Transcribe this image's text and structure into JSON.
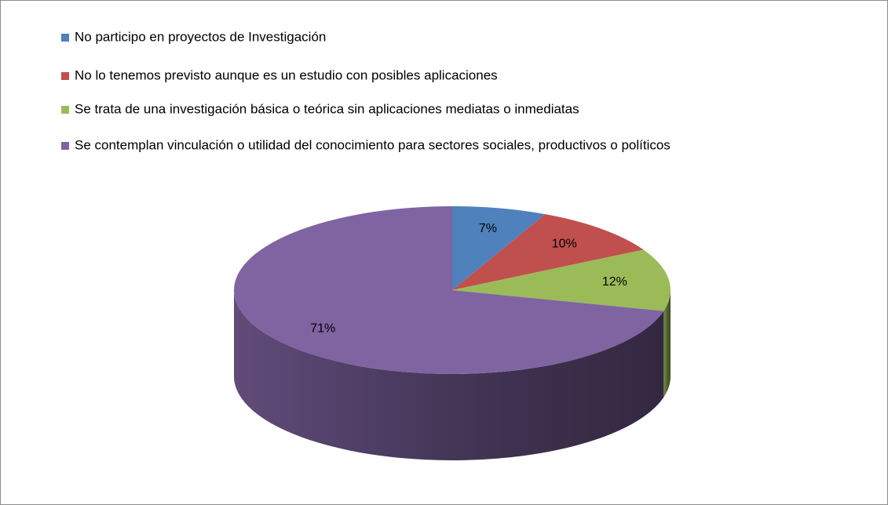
{
  "chart_data": {
    "type": "pie",
    "categories": [
      "No participo en proyectos de Investigación",
      "No lo tenemos previsto aunque es un estudio con posibles aplicaciones",
      "Se trata de una investigación básica o teórica sin aplicaciones mediatas o inmediatas",
      "Se contemplan vinculación o utilidad del conocimiento para sectores sociales, productivos o políticos"
    ],
    "values": [
      7,
      10,
      12,
      71
    ],
    "value_labels": [
      "7%",
      "10%",
      "12%",
      "71%"
    ],
    "colors": [
      "#4f81bd",
      "#c0504d",
      "#9bbb59",
      "#8064a2"
    ],
    "legend": "top-left",
    "3d": true
  }
}
